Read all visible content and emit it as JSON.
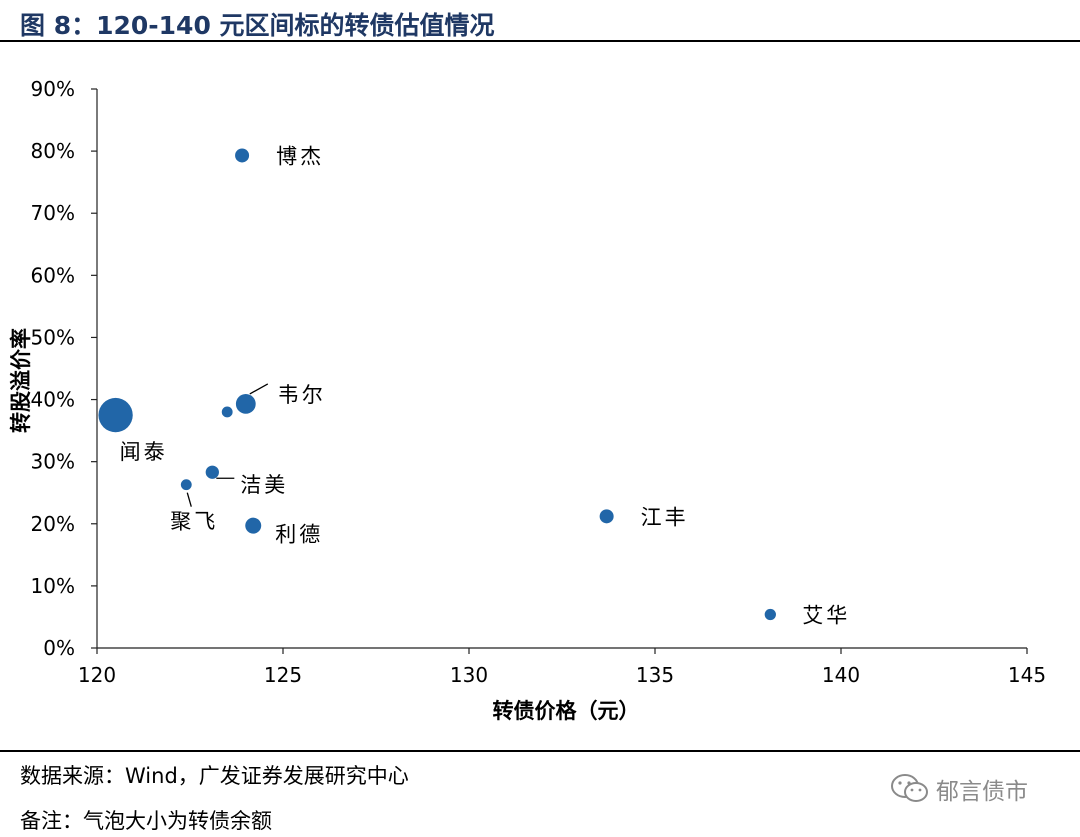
{
  "figure": {
    "title": "图 8：120-140 元区间标的转债估值情况",
    "source": "数据来源：Wind，广发证券发展研究中心",
    "note": "备注：气泡大小为转债余额",
    "watermark": "郁言债市",
    "watermark_icon": "wechat-icon"
  },
  "chart_data": {
    "type": "scatter",
    "subtype": "bubble",
    "title": "",
    "xlabel": "转债价格（元）",
    "ylabel": "转股溢价率",
    "xlim": [
      120,
      145
    ],
    "ylim": [
      0,
      0.9
    ],
    "x_ticks": [
      "120",
      "125",
      "130",
      "135",
      "140",
      "145"
    ],
    "y_ticks": [
      "0%",
      "10%",
      "20%",
      "30%",
      "40%",
      "50%",
      "60%",
      "70%",
      "80%",
      "90%"
    ],
    "grid": false,
    "color": "#2166a8",
    "points": [
      {
        "label": "博杰",
        "x": 123.9,
        "y": 0.793,
        "size": 1.0
      },
      {
        "label": "韦尔",
        "x": 124.0,
        "y": 0.393,
        "size": 2.0
      },
      {
        "label": "",
        "x": 123.5,
        "y": 0.38,
        "size": 0.6
      },
      {
        "label": "闻泰",
        "x": 120.5,
        "y": 0.375,
        "size": 6.0
      },
      {
        "label": "洁美",
        "x": 123.1,
        "y": 0.283,
        "size": 0.9
      },
      {
        "label": "聚飞",
        "x": 122.4,
        "y": 0.263,
        "size": 0.6
      },
      {
        "label": "利德",
        "x": 124.2,
        "y": 0.197,
        "size": 1.3
      },
      {
        "label": "江丰",
        "x": 133.7,
        "y": 0.212,
        "size": 1.0
      },
      {
        "label": "艾华",
        "x": 138.1,
        "y": 0.054,
        "size": 0.65
      }
    ]
  }
}
